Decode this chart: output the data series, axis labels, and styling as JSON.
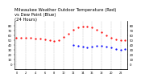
{
  "title": "Milwaukee Weather Outdoor Temperature (Red)\nvs Dew Point (Blue)\n(24 Hours)",
  "title_fontsize": 3.8,
  "temp_color": "#ff0000",
  "dew_color": "#0000ff",
  "bg_color": "#ffffff",
  "grid_color": "#999999",
  "hours": [
    0,
    1,
    2,
    3,
    4,
    5,
    6,
    7,
    8,
    9,
    10,
    11,
    12,
    13,
    14,
    15,
    16,
    17,
    18,
    19,
    20,
    21,
    22,
    23
  ],
  "temperature": [
    55,
    55,
    55,
    55,
    54,
    54,
    52,
    50,
    48,
    50,
    56,
    64,
    72,
    76,
    78,
    78,
    76,
    72,
    66,
    60,
    55,
    52,
    50,
    49
  ],
  "dewpoint": [
    null,
    null,
    null,
    null,
    null,
    null,
    null,
    null,
    null,
    null,
    null,
    null,
    40,
    38,
    36,
    34,
    36,
    38,
    38,
    36,
    34,
    32,
    30,
    32
  ],
  "ylim_min": -10,
  "ylim_max": 90,
  "ytick_vals": [
    0,
    10,
    20,
    30,
    40,
    50,
    60,
    70,
    80
  ],
  "ytick_labels": [
    "0",
    "10",
    "20",
    "30",
    "40",
    "50",
    "60",
    "70",
    "80"
  ],
  "ytick_fontsize": 2.8,
  "xtick_fontsize": 2.5,
  "markersize": 1.2
}
